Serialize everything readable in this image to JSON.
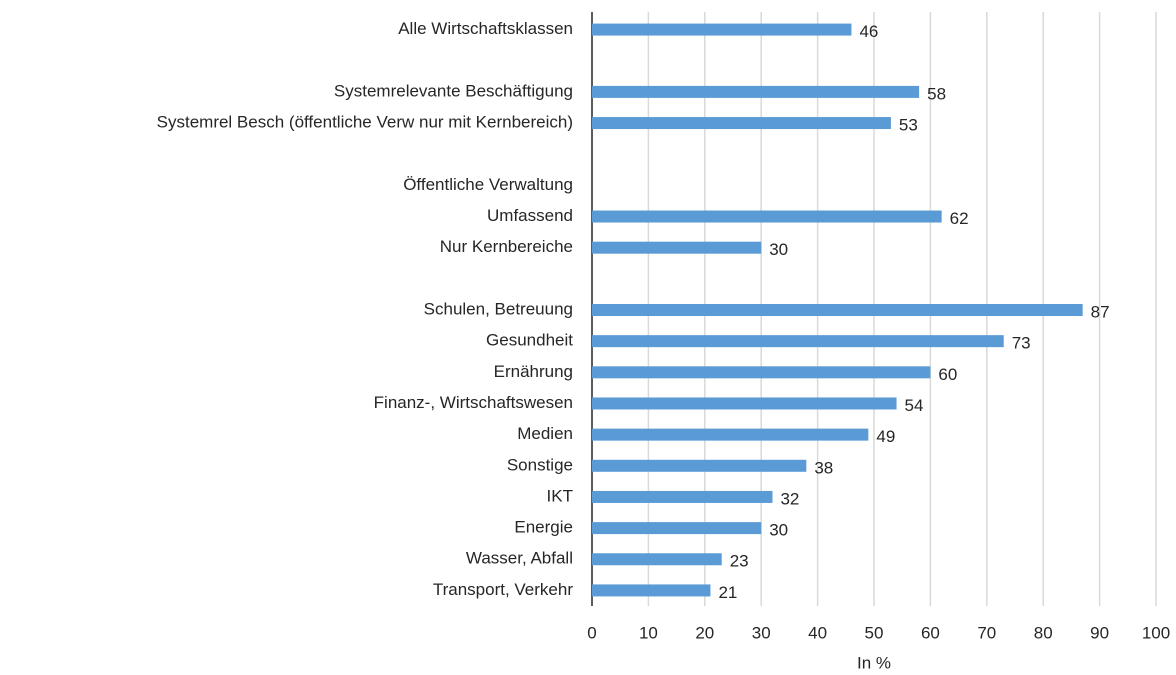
{
  "chart_data": {
    "type": "bar",
    "orientation": "horizontal",
    "categories": [
      "Alle Wirtschaftsklassen",
      null,
      "Systemrelevante Beschäftigung",
      "Systemrel Besch (öffentliche Verw nur mit Kernbereich)",
      null,
      "Öffentliche Verwaltung",
      "Umfassend",
      "Nur Kernbereiche",
      null,
      "Schulen, Betreuung",
      "Gesundheit",
      "Ernährung",
      "Finanz-, Wirtschaftswesen",
      "Medien",
      "Sonstige",
      "IKT",
      "Energie",
      "Wasser, Abfall",
      "Transport, Verkehr"
    ],
    "values": [
      46,
      null,
      58,
      53,
      null,
      null,
      62,
      30,
      null,
      87,
      73,
      60,
      54,
      49,
      38,
      32,
      30,
      23,
      21
    ],
    "color": "#5b9bd5",
    "x_label": "In %",
    "xlim": [
      0,
      100
    ],
    "xticks": [
      0,
      10,
      20,
      30,
      40,
      50,
      60,
      70,
      80,
      90,
      100
    ],
    "grid": true
  }
}
